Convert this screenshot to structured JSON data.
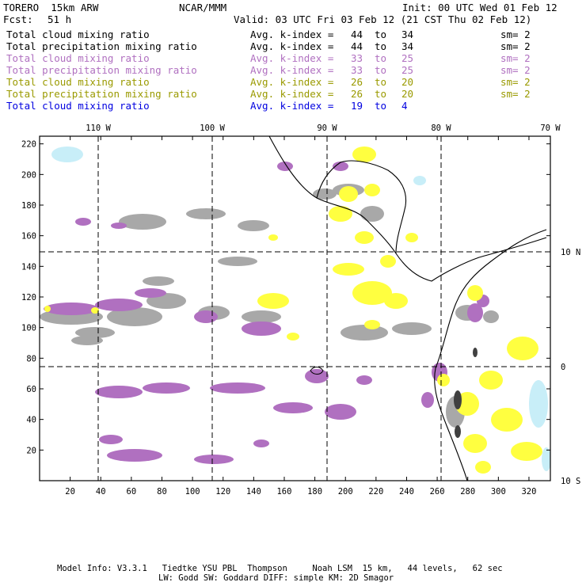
{
  "header": {
    "model": "TORERO  15km ARW",
    "org": "NCAR/MMM",
    "init": "Init: 00 UTC Wed 01 Feb 12",
    "fcst_label": "Fcst:",
    "fcst_value": "51 h",
    "valid": "Valid: 03 UTC Fri 03 Feb 12 (21 CST Thu 02 Feb 12)"
  },
  "legend": [
    {
      "field": "Total cloud mixing ratio",
      "avg_label": "Avg. k-index =",
      "from": "44",
      "to_word": "to",
      "to": "34",
      "sm": "sm= 2",
      "color": "#000000"
    },
    {
      "field": "Total precipitation mixing ratio",
      "avg_label": "Avg. k-index =",
      "from": "44",
      "to_word": "to",
      "to": "34",
      "sm": "sm= 2",
      "color": "#000000"
    },
    {
      "field": "Total cloud mixing ratio",
      "avg_label": "Avg. k-index =",
      "from": "33",
      "to_word": "to",
      "to": "25",
      "sm": "sm= 2",
      "color": "#b070c0"
    },
    {
      "field": "Total precipitation mixing ratio",
      "avg_label": "Avg. k-index =",
      "from": "33",
      "to_word": "to",
      "to": "25",
      "sm": "sm= 2",
      "color": "#b070c0"
    },
    {
      "field": "Total cloud mixing ratio",
      "avg_label": "Avg. k-index =",
      "from": "26",
      "to_word": "to",
      "to": "20",
      "sm": "sm= 2",
      "color": "#9a9a00"
    },
    {
      "field": "Total precipitation mixing ratio",
      "avg_label": "Avg. k-index =",
      "from": "26",
      "to_word": "to",
      "to": "20",
      "sm": "sm= 2",
      "color": "#9a9a00"
    },
    {
      "field": "Total cloud mixing ratio",
      "avg_label": "Avg. k-index =",
      "from": "19",
      "to_word": "to",
      "to": "4",
      "sm": "",
      "color": "#0000e0"
    }
  ],
  "map": {
    "lon_labels": [
      "110 W",
      "100 W",
      "90 W",
      "80 W",
      "70 W"
    ],
    "lat_labels": [
      "10 N",
      "0",
      "10 S"
    ],
    "x_ticks": [
      "20",
      "40",
      "60",
      "80",
      "100",
      "120",
      "140",
      "160",
      "180",
      "200",
      "220",
      "240",
      "260",
      "280",
      "300",
      "320"
    ],
    "y_ticks": [
      "20",
      "40",
      "60",
      "80",
      "100",
      "120",
      "140",
      "160",
      "180",
      "200",
      "220"
    ],
    "colors": {
      "gray": "#a8a8a8",
      "purple": "#b070c0",
      "yellow": "#ffff40",
      "cyan": "#c8eef8",
      "dark": "#404040"
    }
  },
  "footer": {
    "line1": "Model Info: V3.3.1   Tiedtke YSU PBL  Thompson     Noah LSM  15 km,   44 levels,   62 sec",
    "line2": "LW: Godd SW: Goddard DIFF: simple KM: 2D Smagor"
  }
}
